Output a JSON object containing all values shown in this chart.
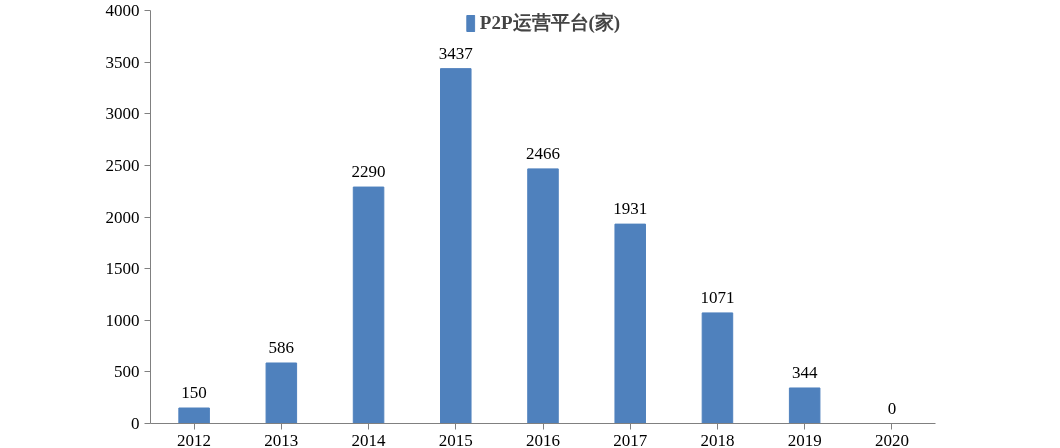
{
  "chart_data": {
    "type": "bar",
    "categories": [
      "2012",
      "2013",
      "2014",
      "2015",
      "2016",
      "2017",
      "2018",
      "2019",
      "2020"
    ],
    "series": [
      {
        "name": "P2P运营平台(家)",
        "color": "#4f81bd",
        "values": [
          150,
          586,
          2290,
          3437,
          2466,
          1931,
          1071,
          344,
          0
        ]
      }
    ],
    "ylim": [
      0,
      4000
    ],
    "yticks": [
      0,
      500,
      1000,
      1500,
      2000,
      2500,
      3000,
      3500,
      4000
    ],
    "grid": false,
    "legend": "top",
    "data_labels": true
  }
}
